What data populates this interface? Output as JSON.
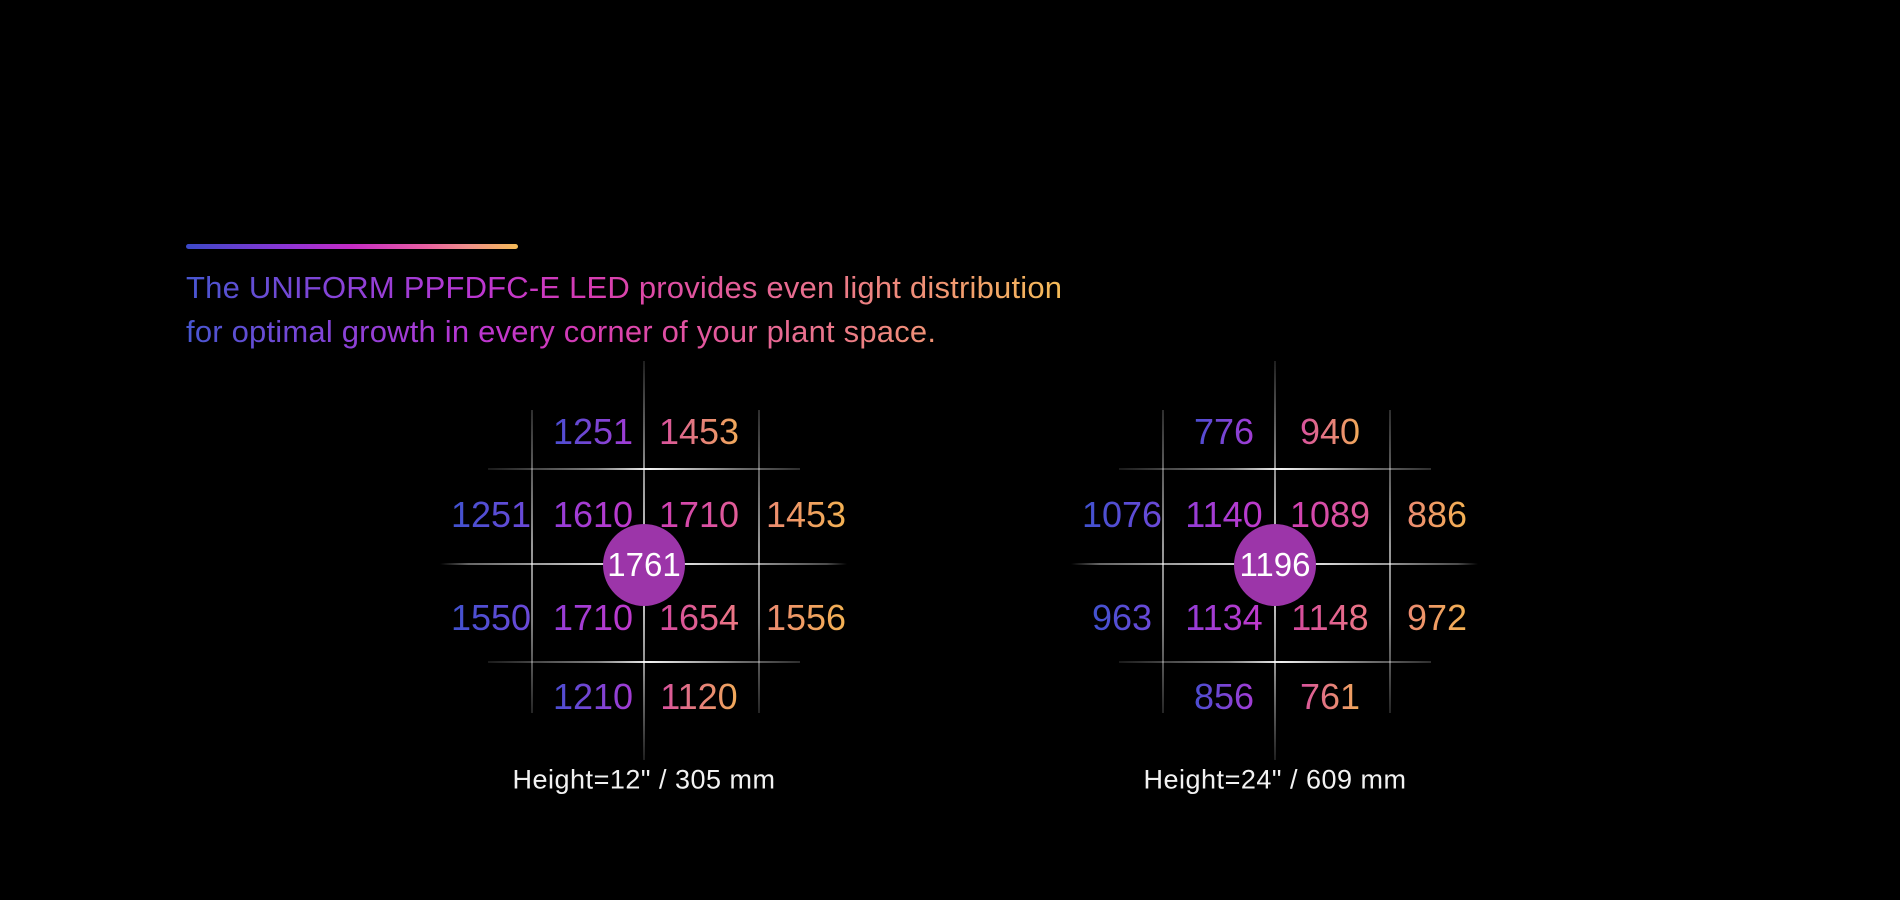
{
  "heading": {
    "line1": "The UNIFORM PPFDFC-E LED provides even light distribution",
    "line2": "for optimal growth in every corner of your plant space."
  },
  "colors": {
    "background": "#000000",
    "accent_gradient": [
      "#3b49c8",
      "#8c35d6",
      "#c62cc5",
      "#e85fa2",
      "#f5bb57"
    ],
    "circle_fill": "#9c35a9",
    "grid_line": "#ffffff",
    "value_palette": {
      "blue": "#4152cf",
      "purple": "#a43cd4",
      "magenta": "#cf40b4",
      "pink": "#e25d96",
      "salmon": "#ec8a71",
      "orange": "#f4b253"
    }
  },
  "chart_data": [
    {
      "type": "heatmap",
      "title": "Height=12\" / 305 mm",
      "caption": "Height=12\" / 305 mm",
      "center_value": 1761,
      "grid_rows": [
        [
          null,
          1251,
          1453,
          null
        ],
        [
          1251,
          1610,
          1710,
          1453
        ],
        [
          1550,
          1710,
          1654,
          1556
        ],
        [
          null,
          1210,
          1120,
          null
        ]
      ],
      "cells": [
        {
          "row": 1,
          "col": 2,
          "value": 1251,
          "tone": "blue-purple"
        },
        {
          "row": 1,
          "col": 3,
          "value": 1453,
          "tone": "pink-orange"
        },
        {
          "row": 2,
          "col": 1,
          "value": 1251,
          "tone": "blue"
        },
        {
          "row": 2,
          "col": 2,
          "value": 1610,
          "tone": "purple"
        },
        {
          "row": 2,
          "col": 3,
          "value": 1710,
          "tone": "magenta"
        },
        {
          "row": 2,
          "col": 4,
          "value": 1453,
          "tone": "salmon-orange"
        },
        {
          "row": 3,
          "col": 1,
          "value": 1550,
          "tone": "blue"
        },
        {
          "row": 3,
          "col": 2,
          "value": 1710,
          "tone": "purple"
        },
        {
          "row": 3,
          "col": 3,
          "value": 1654,
          "tone": "pink"
        },
        {
          "row": 3,
          "col": 4,
          "value": 1556,
          "tone": "salmon-orange"
        },
        {
          "row": 4,
          "col": 2,
          "value": 1210,
          "tone": "blue-purple"
        },
        {
          "row": 4,
          "col": 3,
          "value": 1120,
          "tone": "pink-orange"
        }
      ],
      "legend_position": "none",
      "grid": "on"
    },
    {
      "type": "heatmap",
      "title": "Height=24\" / 609 mm",
      "caption": "Height=24\" / 609 mm",
      "center_value": 1196,
      "grid_rows": [
        [
          null,
          776,
          940,
          null
        ],
        [
          1076,
          1140,
          1089,
          886
        ],
        [
          963,
          1134,
          1148,
          972
        ],
        [
          null,
          856,
          761,
          null
        ]
      ],
      "cells": [
        {
          "row": 1,
          "col": 2,
          "value": 776,
          "tone": "blue-purple"
        },
        {
          "row": 1,
          "col": 3,
          "value": 940,
          "tone": "pink-orange"
        },
        {
          "row": 2,
          "col": 1,
          "value": 1076,
          "tone": "blue"
        },
        {
          "row": 2,
          "col": 2,
          "value": 1140,
          "tone": "purple"
        },
        {
          "row": 2,
          "col": 3,
          "value": 1089,
          "tone": "magenta"
        },
        {
          "row": 2,
          "col": 4,
          "value": 886,
          "tone": "salmon-orange"
        },
        {
          "row": 3,
          "col": 1,
          "value": 963,
          "tone": "blue"
        },
        {
          "row": 3,
          "col": 2,
          "value": 1134,
          "tone": "purple"
        },
        {
          "row": 3,
          "col": 3,
          "value": 1148,
          "tone": "pink"
        },
        {
          "row": 3,
          "col": 4,
          "value": 972,
          "tone": "salmon-orange"
        },
        {
          "row": 4,
          "col": 2,
          "value": 856,
          "tone": "blue-purple"
        },
        {
          "row": 4,
          "col": 3,
          "value": 761,
          "tone": "pink-orange"
        }
      ],
      "legend_position": "none",
      "grid": "on"
    }
  ]
}
